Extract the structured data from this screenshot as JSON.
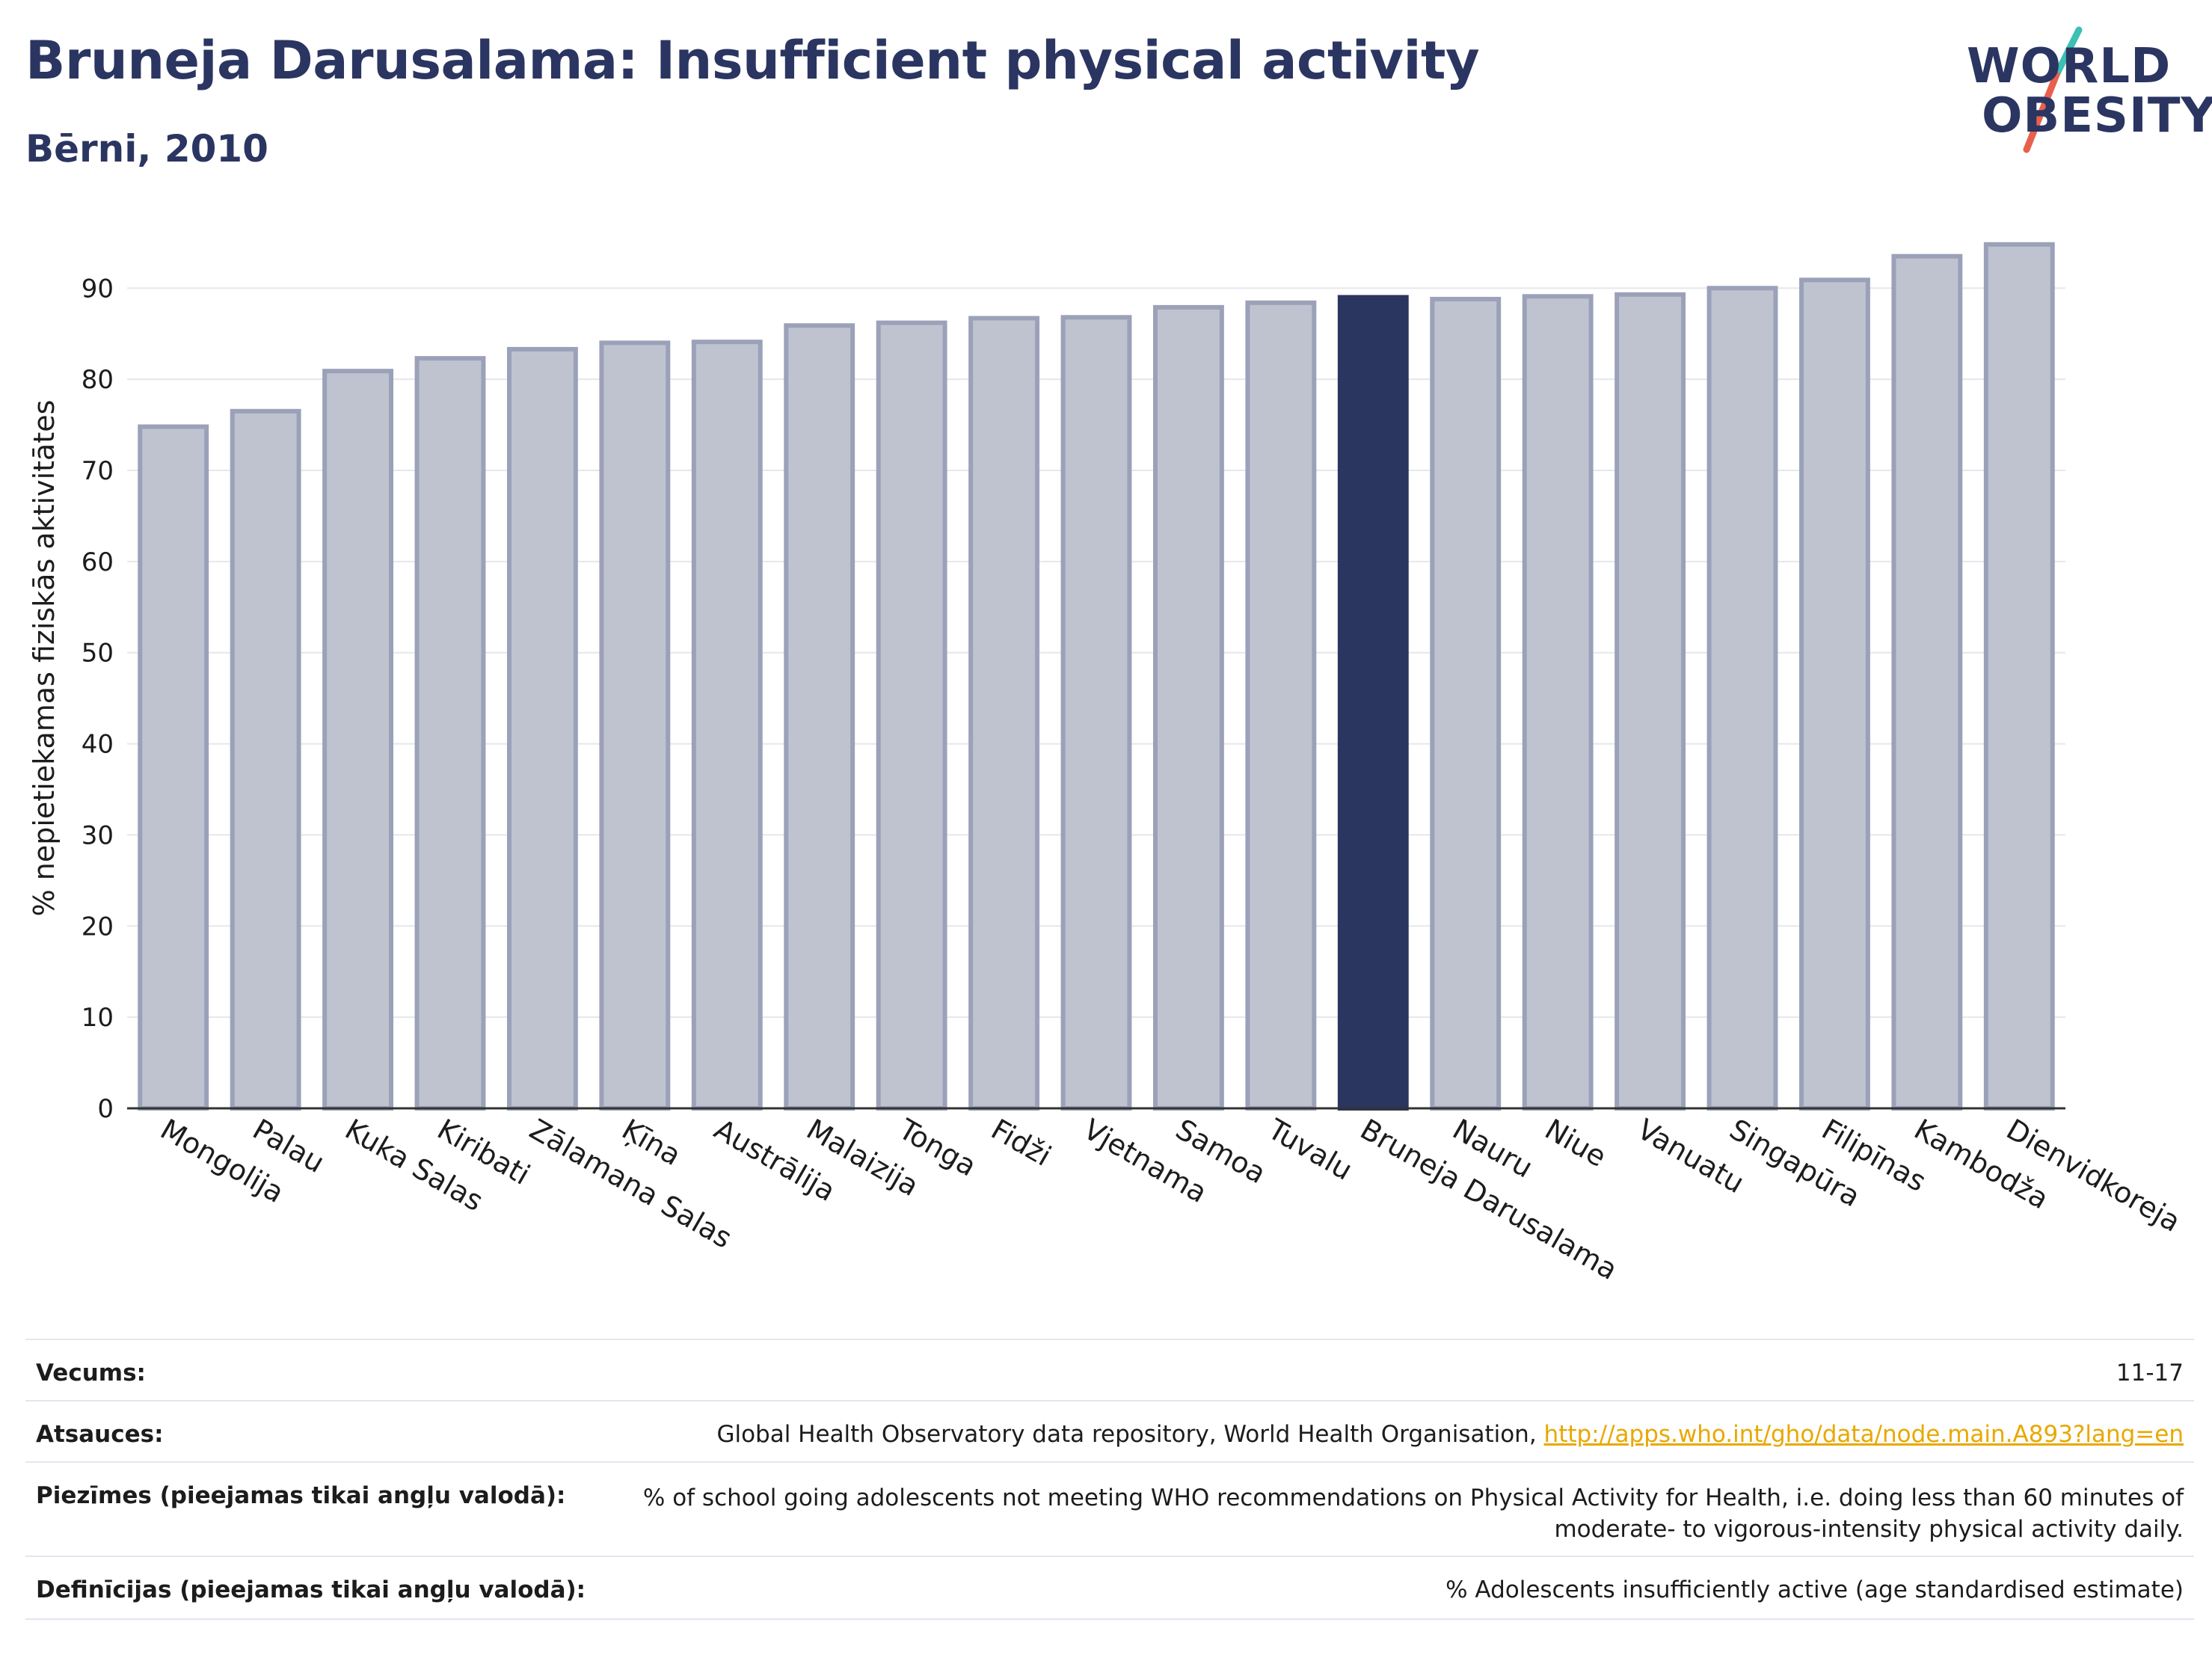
{
  "header": {
    "title": "Bruneja Darusalama: Insufficient physical activity",
    "subtitle": "Bērni, 2010"
  },
  "logo": {
    "line1": "WORLD",
    "line2": "OBESITY",
    "accent_teal": "#3cc0b4",
    "accent_red": "#e8604c"
  },
  "chart_data": {
    "type": "bar",
    "ylabel": "% nepietiekamas fiziskās aktivitātes",
    "ylim": [
      0,
      97
    ],
    "yticks": [
      0,
      10,
      20,
      30,
      40,
      50,
      60,
      70,
      80,
      90
    ],
    "grid": true,
    "categories": [
      "Mongolija",
      "Palau",
      "Kuka Salas",
      "Kiribati",
      "Zālamana Salas",
      "Ķīna",
      "Austrālija",
      "Malaizija",
      "Tonga",
      "Fidži",
      "Vjetnama",
      "Samoa",
      "Tuvalu",
      "Bruneja Darusalama",
      "Nauru",
      "Niue",
      "Vanuatu",
      "Singapūra",
      "Filipīnas",
      "Kambodža",
      "Dienvidkoreja"
    ],
    "values": [
      74.8,
      76.5,
      80.9,
      82.3,
      83.3,
      84.0,
      84.1,
      85.9,
      86.2,
      86.7,
      86.8,
      87.9,
      88.4,
      89.0,
      88.8,
      89.1,
      89.3,
      90.0,
      90.9,
      93.5,
      94.8
    ],
    "highlight": "Bruneja Darusalama",
    "colors": {
      "bar": "#bfc3d0",
      "bar_edge": "#9ba1b8",
      "highlight": "#2a3560",
      "grid": "#e6e7ec",
      "axis": "#333333"
    }
  },
  "meta": {
    "age_label": "Vecums:",
    "age_value": "11-17",
    "sources_label": "Atsauces:",
    "sources_text": "Global Health Observatory data repository, World Health Organisation,",
    "sources_link": "http://apps.who.int/gho/data/node.main.A893?lang=en",
    "notes_label": "Piezīmes (pieejamas tikai angļu valodā):",
    "notes_line1": "% of school going adolescents not meeting WHO recommendations on Physical Activity for Health, i.e. doing less than 60 minutes of",
    "notes_line2": "moderate- to vigorous-intensity physical activity daily.",
    "definitions_label": "Definīcijas (pieejamas tikai angļu valodā):",
    "definitions_value": "% Adolescents insufficiently active (age standardised estimate)"
  }
}
